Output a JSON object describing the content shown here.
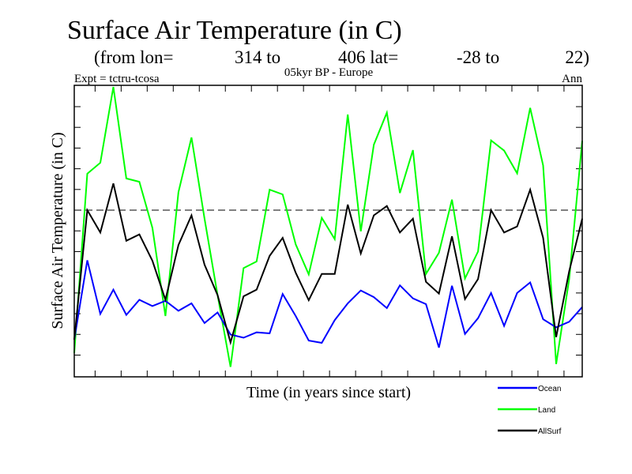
{
  "chart_data": {
    "type": "line",
    "title": "Surface Air Temperature (in C)",
    "subtitle": {
      "from_lon_label": "(from lon=",
      "lon_start": "314 to",
      "lon_end_lat_label": "406 lat=",
      "lat_start": "-28 to",
      "lat_end": "22)"
    },
    "experiment": "Expt = tctru-tcosa",
    "period": "05kyr BP - Europe",
    "season": "Ann",
    "xlabel": "Time (in years since start)",
    "ylabel": "Surface Air Temperature (in C)",
    "xlim": [
      0,
      39
    ],
    "ylim": [
      -8.05,
      6.03
    ],
    "reference_line": 0,
    "yticks": [
      -7,
      -6,
      -5,
      -4,
      -3,
      -2,
      -1,
      0,
      1,
      2,
      3,
      4,
      5
    ],
    "xticks_start": 1.6,
    "xticks_step": 2,
    "grid": false,
    "legend_position": "bottom-right",
    "series": [
      {
        "name": "Ocean",
        "color": "#0000ff",
        "values": [
          -6.26,
          -2.42,
          -5.01,
          -3.84,
          -5.06,
          -4.33,
          -4.63,
          -4.38,
          -4.86,
          -4.5,
          -5.45,
          -4.94,
          -6.01,
          -6.16,
          -5.9,
          -5.95,
          -4.05,
          -5.11,
          -6.3,
          -6.41,
          -5.31,
          -4.5,
          -3.88,
          -4.2,
          -4.73,
          -3.63,
          -4.26,
          -4.54,
          -6.64,
          -3.65,
          -5.98,
          -5.22,
          -4.0,
          -5.59,
          -4.0,
          -3.49,
          -5.27,
          -5.66,
          -5.39,
          -4.68
        ]
      },
      {
        "name": "Land",
        "color": "#00ff00",
        "values": [
          -6.9,
          1.76,
          2.29,
          5.95,
          1.53,
          1.37,
          -0.85,
          -5.11,
          0.87,
          3.51,
          -0.41,
          -4.1,
          -7.57,
          -2.8,
          -2.48,
          0.99,
          0.76,
          -1.65,
          -3.1,
          -0.37,
          -1.4,
          4.62,
          -1.02,
          3.16,
          4.71,
          0.83,
          2.9,
          -3.08,
          -2.06,
          0.51,
          -3.3,
          -2.0,
          3.37,
          2.88,
          1.78,
          4.94,
          2.16,
          -7.43,
          -3.33,
          3.35
        ]
      },
      {
        "name": "AllSurf",
        "color": "#000000",
        "values": [
          -6.26,
          0,
          -1.08,
          1.29,
          -1.48,
          -1.17,
          -2.44,
          -4.33,
          -1.68,
          -0.25,
          -2.63,
          -4.1,
          -6.39,
          -4.16,
          -3.84,
          -2.21,
          -1.34,
          -3.02,
          -4.35,
          -3.08,
          -3.08,
          0.27,
          -2.09,
          -0.25,
          0.2,
          -1.08,
          -0.41,
          -3.46,
          -4.03,
          -1.26,
          -4.29,
          -3.33,
          0,
          -1.08,
          -0.79,
          0.99,
          -1.34,
          -6.13,
          -2.95,
          -0.41
        ]
      }
    ]
  }
}
